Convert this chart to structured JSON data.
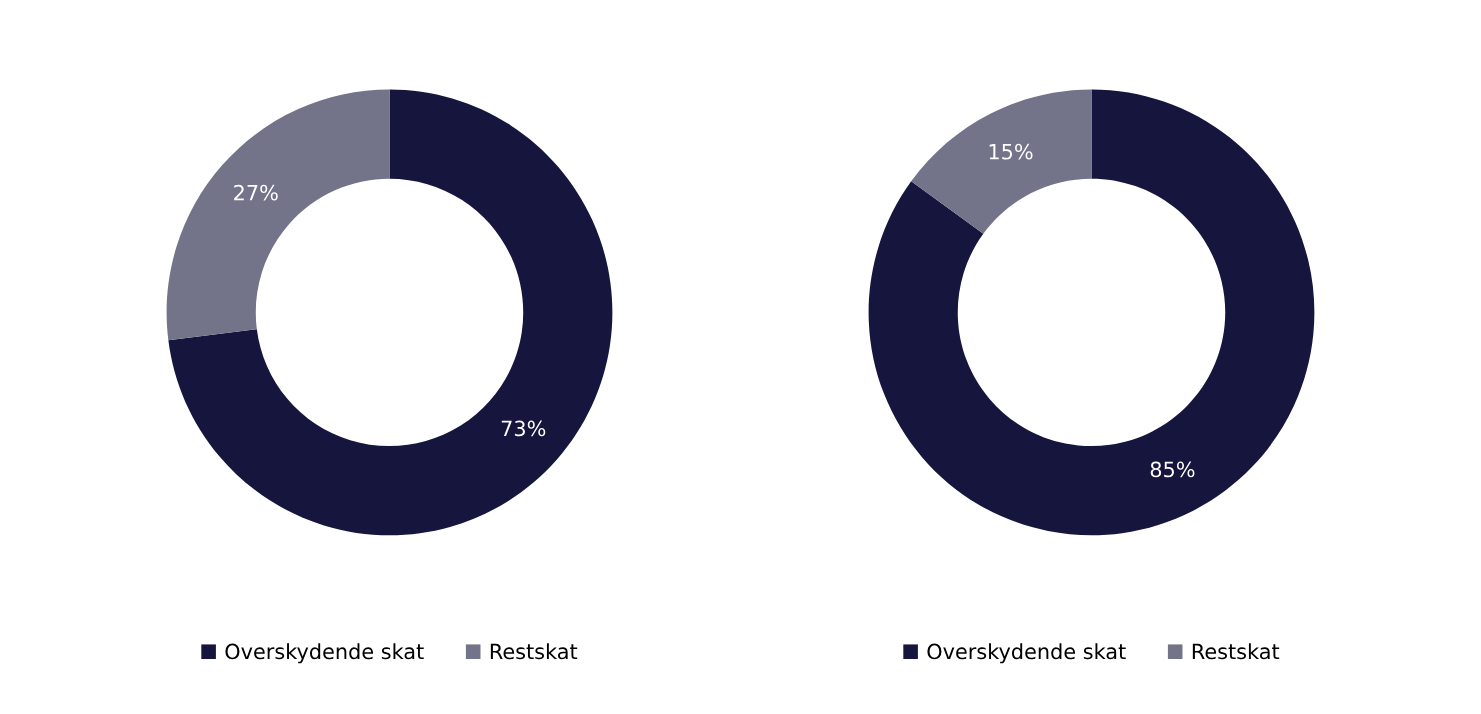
{
  "chart_data": [
    {
      "type": "donut",
      "categories": [
        "Overskydende skat",
        "Restskat"
      ],
      "values": [
        73,
        27
      ],
      "colors": [
        "#16153d",
        "#737389"
      ],
      "value_labels": [
        "73%",
        "27%"
      ],
      "legend": "bottom"
    },
    {
      "type": "donut",
      "categories": [
        "Overskydende skat",
        "Restskat"
      ],
      "values": [
        85,
        15
      ],
      "colors": [
        "#16153d",
        "#737389"
      ],
      "value_labels": [
        "85%",
        "15%"
      ],
      "legend": "bottom"
    }
  ]
}
